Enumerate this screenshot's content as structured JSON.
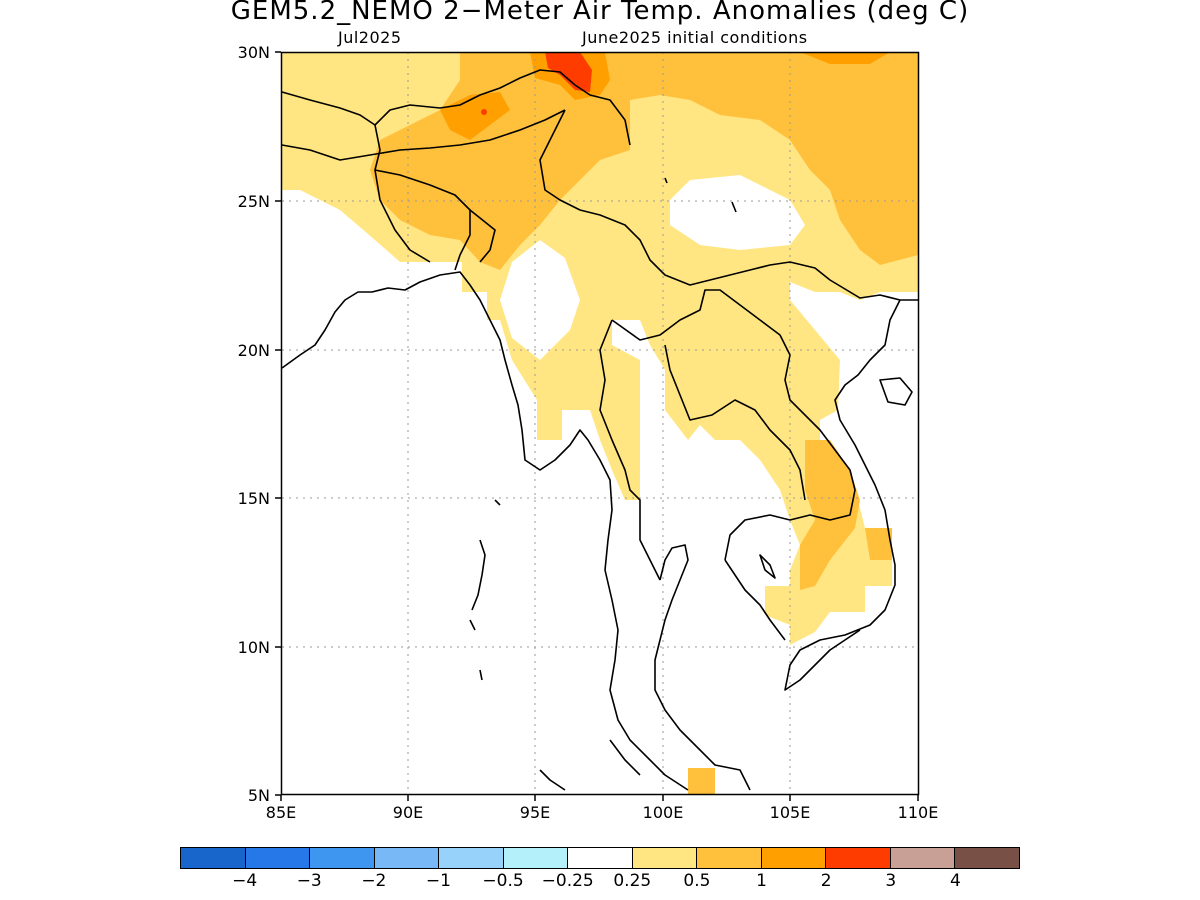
{
  "title": "GEM5.2_NEMO 2−Meter Air Temp. Anomalies (deg C)",
  "subtitle_left": "Jul2025",
  "subtitle_right": "June2025 initial conditions",
  "map": {
    "lon_range": [
      85,
      110
    ],
    "lat_range": [
      5,
      30
    ],
    "x_ticks": [
      "85E",
      "90E",
      "95E",
      "100E",
      "105E",
      "110E"
    ],
    "y_ticks": [
      "5N",
      "10N",
      "15N",
      "20N",
      "25N",
      "30N"
    ],
    "grid": "dotted"
  },
  "colorbar": {
    "colors": [
      "#1866cc",
      "#2678e8",
      "#3f96f0",
      "#78b8f6",
      "#96d2fa",
      "#b4f0fa",
      "#ffffff",
      "#ffe682",
      "#ffc03c",
      "#ffa000",
      "#ff3c00",
      "#c8a096",
      "#785046"
    ],
    "labels": [
      "−4",
      "−3",
      "−2",
      "−1",
      "−0.5",
      "−0.25",
      "0.25",
      "0.5",
      "1",
      "2",
      "3",
      "4"
    ]
  }
}
